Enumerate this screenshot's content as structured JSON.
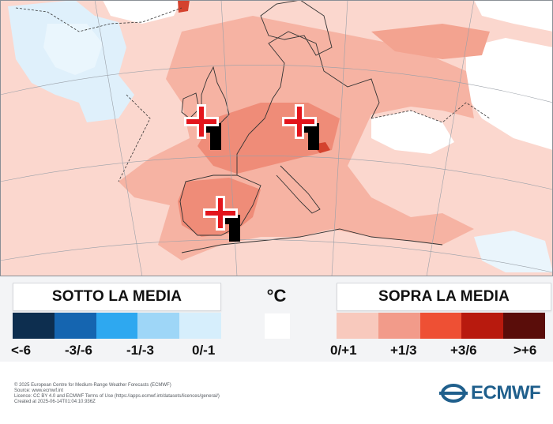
{
  "legend": {
    "below_title": "SOTTO LA MEDIA",
    "above_title": "SOPRA LA MEDIA",
    "unit": "°C",
    "below_colors": [
      "#0d2e4f",
      "#1565b0",
      "#2ea8f0",
      "#9ed6f7",
      "#d6eefc"
    ],
    "above_colors": [
      "#f8c9bd",
      "#f29b8a",
      "#ee5034",
      "#b81a0e",
      "#5a0d0a"
    ],
    "neutral_color": "#ffffff",
    "below_ticks": [
      "<-6",
      "-3/-6",
      "-1/-3",
      "0/-1"
    ],
    "above_ticks": [
      "0/+1",
      "+1/3",
      "+3/6",
      ">+6"
    ]
  },
  "footer": {
    "line1": "© 2025 European Centre for Medium-Range Weather Forecasts (ECMWF)",
    "line2": "Source: www.ecmwf.int",
    "line3": "Licence: CC BY 4.0 and ECMWF Terms of Use (https://apps.ecmwf.int/datasets/licences/general/)",
    "line4": "Created at 2025-06-14T01:04:10.936Z"
  },
  "logo": {
    "text": "ECMWF"
  },
  "map": {
    "colors": {
      "sea": "#fbd7ce",
      "warm": "#f6b3a3",
      "warmer": "#ef8c78",
      "cold": "#dff0fb",
      "white": "#ffffff",
      "hot": "#d4422e"
    },
    "markers": [
      "plus-marker",
      "plus-marker",
      "plus-marker"
    ]
  }
}
